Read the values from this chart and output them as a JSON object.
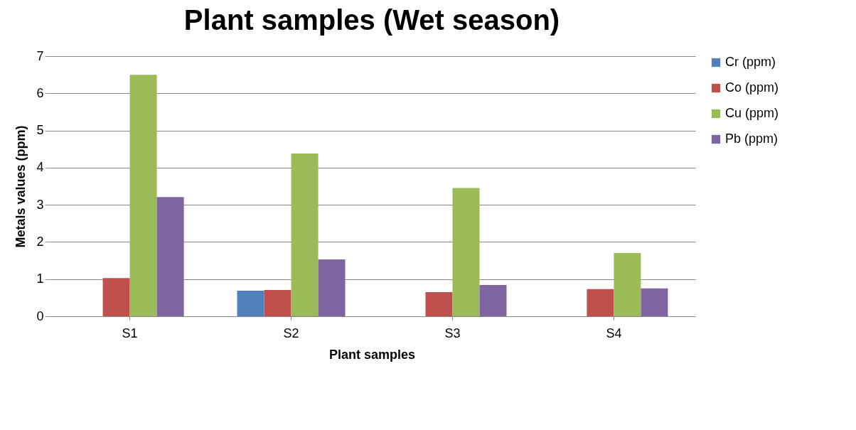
{
  "chart_data": {
    "type": "bar",
    "title": "Plant samples (Wet season)",
    "xlabel": "Plant samples",
    "ylabel": "Metals values (ppm)",
    "categories": [
      "S1",
      "S2",
      "S3",
      "S4"
    ],
    "series": [
      {
        "name": "Cr (ppm)",
        "color": "#4f81bd",
        "values": [
          0,
          0.69,
          0,
          0
        ]
      },
      {
        "name": "Co (ppm)",
        "color": "#c0504d",
        "values": [
          1.03,
          0.71,
          0.65,
          0.73
        ]
      },
      {
        "name": "Cu (ppm)",
        "color": "#9bbb59",
        "values": [
          6.5,
          4.38,
          3.45,
          1.7
        ]
      },
      {
        "name": "Pb (ppm)",
        "color": "#8064a2",
        "values": [
          3.21,
          1.53,
          0.84,
          0.75
        ]
      }
    ],
    "ylim": [
      0,
      7
    ],
    "yticks": [
      0,
      1,
      2,
      3,
      4,
      5,
      6,
      7
    ],
    "grid": "y",
    "legend": "right"
  }
}
